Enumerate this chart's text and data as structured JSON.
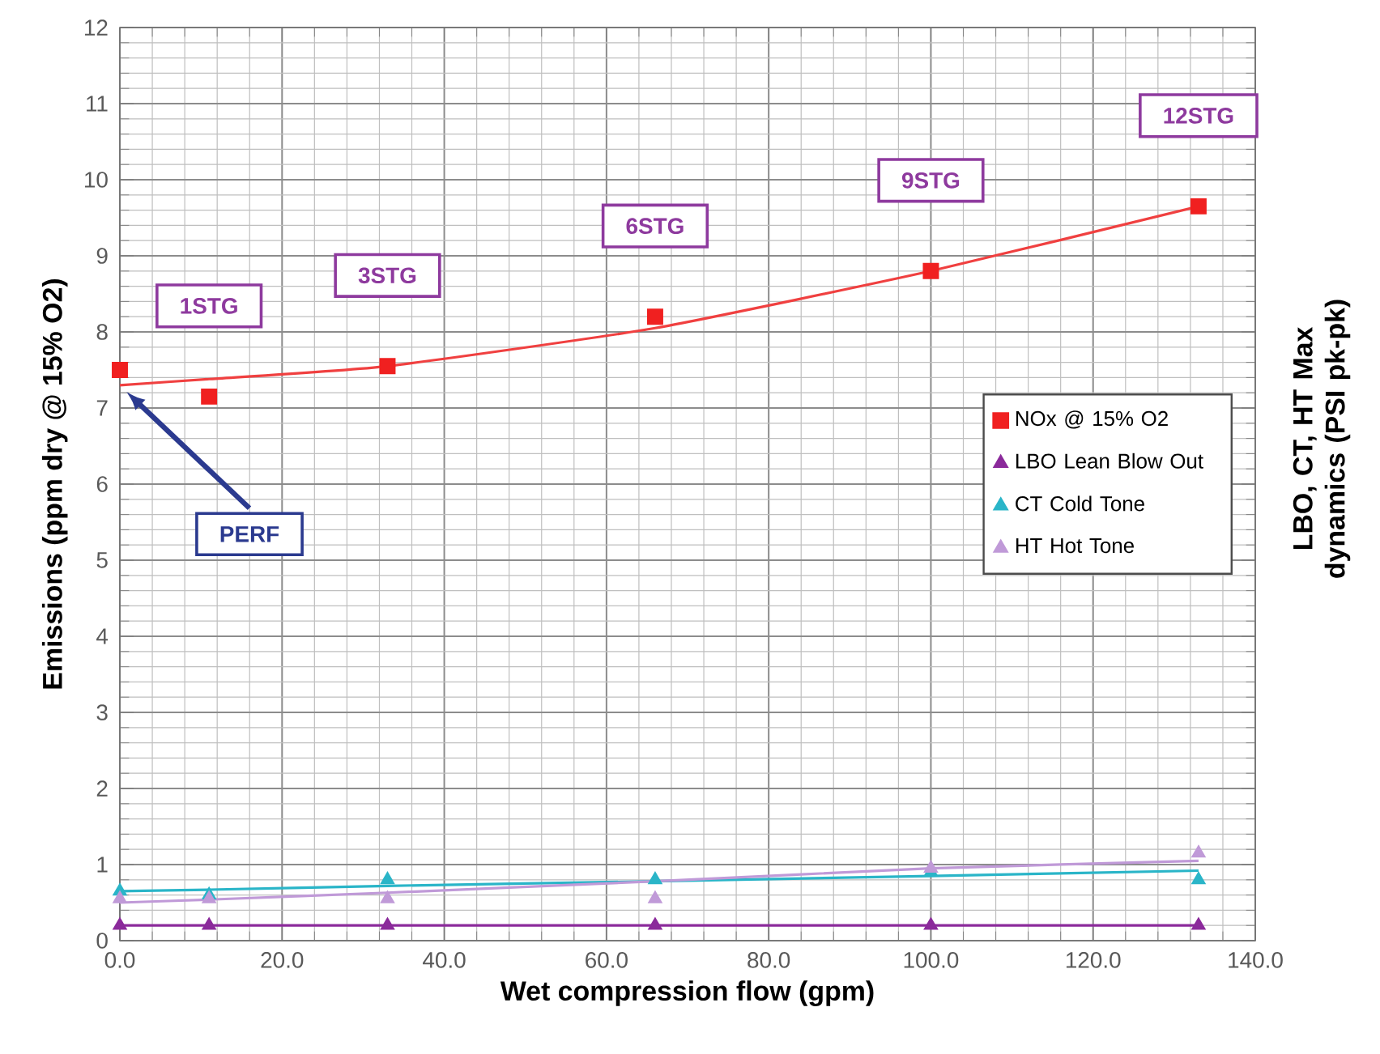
{
  "chart_data": {
    "type": "scatter",
    "xlabel": "Wet compression flow (gpm)",
    "ylabel": "Emissions (ppm dry @ 15% O2)",
    "y2label": "LBO, CT, HT Max dynamics (PSI pk-pk)",
    "x": [
      0,
      11,
      33,
      66,
      100,
      133
    ],
    "series": [
      {
        "name": "NOx @ 15% O2",
        "marker": "square",
        "color": "#f02020",
        "values": [
          7.5,
          7.15,
          7.55,
          8.2,
          8.8,
          9.65
        ]
      },
      {
        "name": "LBO Lean Blow Out",
        "marker": "triangle",
        "color": "#8b2a9b",
        "values": [
          0.2,
          0.2,
          0.2,
          0.2,
          0.2,
          0.2
        ]
      },
      {
        "name": "CT Cold Tone",
        "marker": "triangle",
        "color": "#2ab5c8",
        "values": [
          0.65,
          0.6,
          0.8,
          0.8,
          0.9,
          0.8
        ]
      },
      {
        "name": "HT Hot Tone",
        "marker": "triangle",
        "color": "#c09ad8",
        "values": [
          0.55,
          0.55,
          0.55,
          0.55,
          0.95,
          1.15
        ]
      },
      {
        "type": "line",
        "marker": "none",
        "color": "#f04040",
        "values": [
          7.3,
          7.38,
          7.55,
          8.05,
          8.8,
          9.65
        ]
      },
      {
        "type": "line",
        "marker": "none",
        "color": "#8b2a9b",
        "values": [
          0.2,
          0.2,
          0.2,
          0.2,
          0.2,
          0.2
        ]
      },
      {
        "type": "line",
        "marker": "none",
        "color": "#2ab5c8",
        "values": [
          0.65,
          0.67,
          0.72,
          0.78,
          0.85,
          0.92
        ]
      },
      {
        "type": "line",
        "marker": "none",
        "color": "#c09ad8",
        "values": [
          0.5,
          0.54,
          0.63,
          0.78,
          0.95,
          1.05
        ]
      }
    ],
    "xlim": [
      0,
      140
    ],
    "ylim": [
      0,
      12
    ],
    "xticks": [
      {
        "value": 0,
        "label": "0.0"
      },
      {
        "value": 20,
        "label": "20.0"
      },
      {
        "value": 40,
        "label": "40.0"
      },
      {
        "value": 60,
        "label": "60.0"
      },
      {
        "value": 80,
        "label": "80.0"
      },
      {
        "value": 100,
        "label": "100.0"
      },
      {
        "value": 120,
        "label": "120.0"
      },
      {
        "value": 140,
        "label": "140.0"
      }
    ],
    "yticks": [
      0,
      1,
      2,
      3,
      4,
      5,
      6,
      7,
      8,
      9,
      10,
      11,
      12
    ],
    "grid": true,
    "legend": "right",
    "annotations": [
      "1STG",
      "3STG",
      "6STG",
      "9STG",
      "12STG",
      "PERF"
    ]
  }
}
